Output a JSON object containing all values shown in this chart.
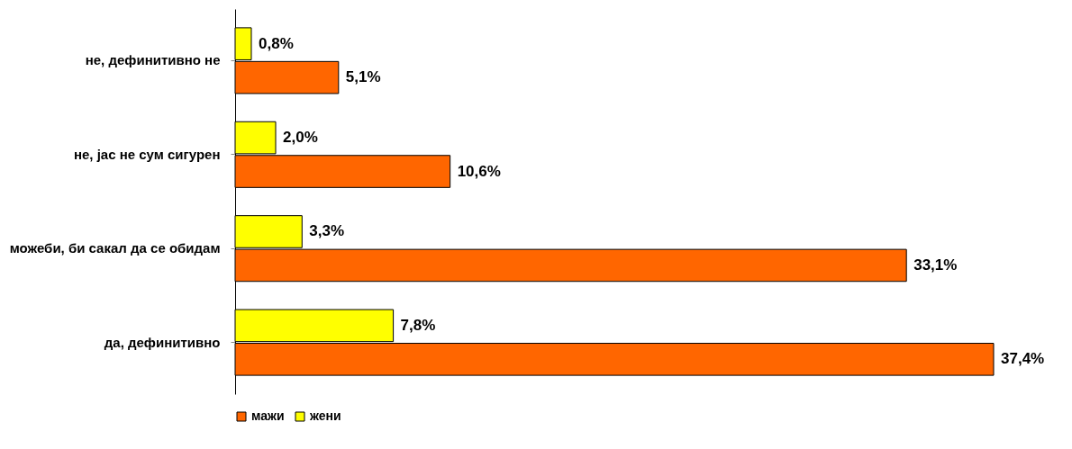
{
  "chart_data": {
    "type": "bar",
    "orientation": "horizontal",
    "categories": [
      "не, дефинитивно не",
      "не, јас не сум сигурен",
      "можеби, би сакал да се обидам",
      "да, дефинитивно"
    ],
    "series": [
      {
        "name": "мажи",
        "color": "#ff6600",
        "values": [
          5.1,
          10.6,
          33.1,
          37.4
        ],
        "value_labels": [
          "5,1%",
          "10,6%",
          "33,1%",
          "37,4%"
        ]
      },
      {
        "name": "жени",
        "color": "#ffff00",
        "values": [
          0.8,
          2.0,
          3.3,
          7.8
        ],
        "value_labels": [
          "0,8%",
          "2,0%",
          "3,3%",
          "7,8%"
        ]
      }
    ],
    "legend": "bottom",
    "grid": false
  }
}
